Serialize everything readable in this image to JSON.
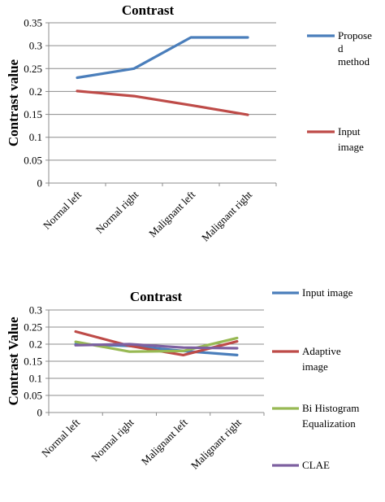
{
  "chart_data": [
    {
      "type": "line",
      "title": "Contrast",
      "ylabel": "Contrast value",
      "xlabel": "",
      "categories": [
        "Normal left",
        "Normal right",
        "Malignant left",
        "Malignant right"
      ],
      "ylim": [
        0,
        0.35
      ],
      "yticks": [
        "0",
        "0.05",
        "0.1",
        "0.15",
        "0.2",
        "0.25",
        "0.3",
        "0.35"
      ],
      "grid": true,
      "legend": "right",
      "series": [
        {
          "name": "Proposed method",
          "legend_lines": [
            "Propose",
            "d",
            "method"
          ],
          "color": "#4a7ebb",
          "values": [
            0.23,
            0.25,
            0.318,
            0.318
          ]
        },
        {
          "name": "Input image",
          "legend_lines": [
            "Input",
            "image"
          ],
          "color": "#be4b48",
          "values": [
            0.201,
            0.19,
            0.17,
            0.149
          ]
        }
      ]
    },
    {
      "type": "line",
      "title": "Contrast",
      "ylabel": "Contrast Value",
      "xlabel": "",
      "categories": [
        "Normal left",
        "Normal right",
        "Malignant left",
        "Malignant right"
      ],
      "ylim": [
        0,
        0.3
      ],
      "yticks": [
        "0",
        "0.05",
        "0.1",
        "0.15",
        "0.2",
        "0.25",
        "0.3"
      ],
      "grid": true,
      "legend": "right",
      "series": [
        {
          "name": "Input image",
          "legend_lines": [
            "Input image"
          ],
          "color": "#4a7ebb",
          "values": [
            0.2,
            0.195,
            0.18,
            0.168
          ]
        },
        {
          "name": "Adaptive image",
          "legend_lines": [
            "Adaptive",
            "image"
          ],
          "color": "#be4b48",
          "values": [
            0.237,
            0.195,
            0.168,
            0.208
          ]
        },
        {
          "name": "Bi Histogram Equalization",
          "legend_lines": [
            "Bi Histogram",
            "Equalization"
          ],
          "color": "#98b954",
          "values": [
            0.207,
            0.178,
            0.18,
            0.218
          ]
        },
        {
          "name": "CLAE",
          "legend_lines": [
            "CLAE"
          ],
          "color": "#7d60a0",
          "values": [
            0.197,
            0.2,
            0.19,
            0.188
          ]
        }
      ]
    }
  ]
}
